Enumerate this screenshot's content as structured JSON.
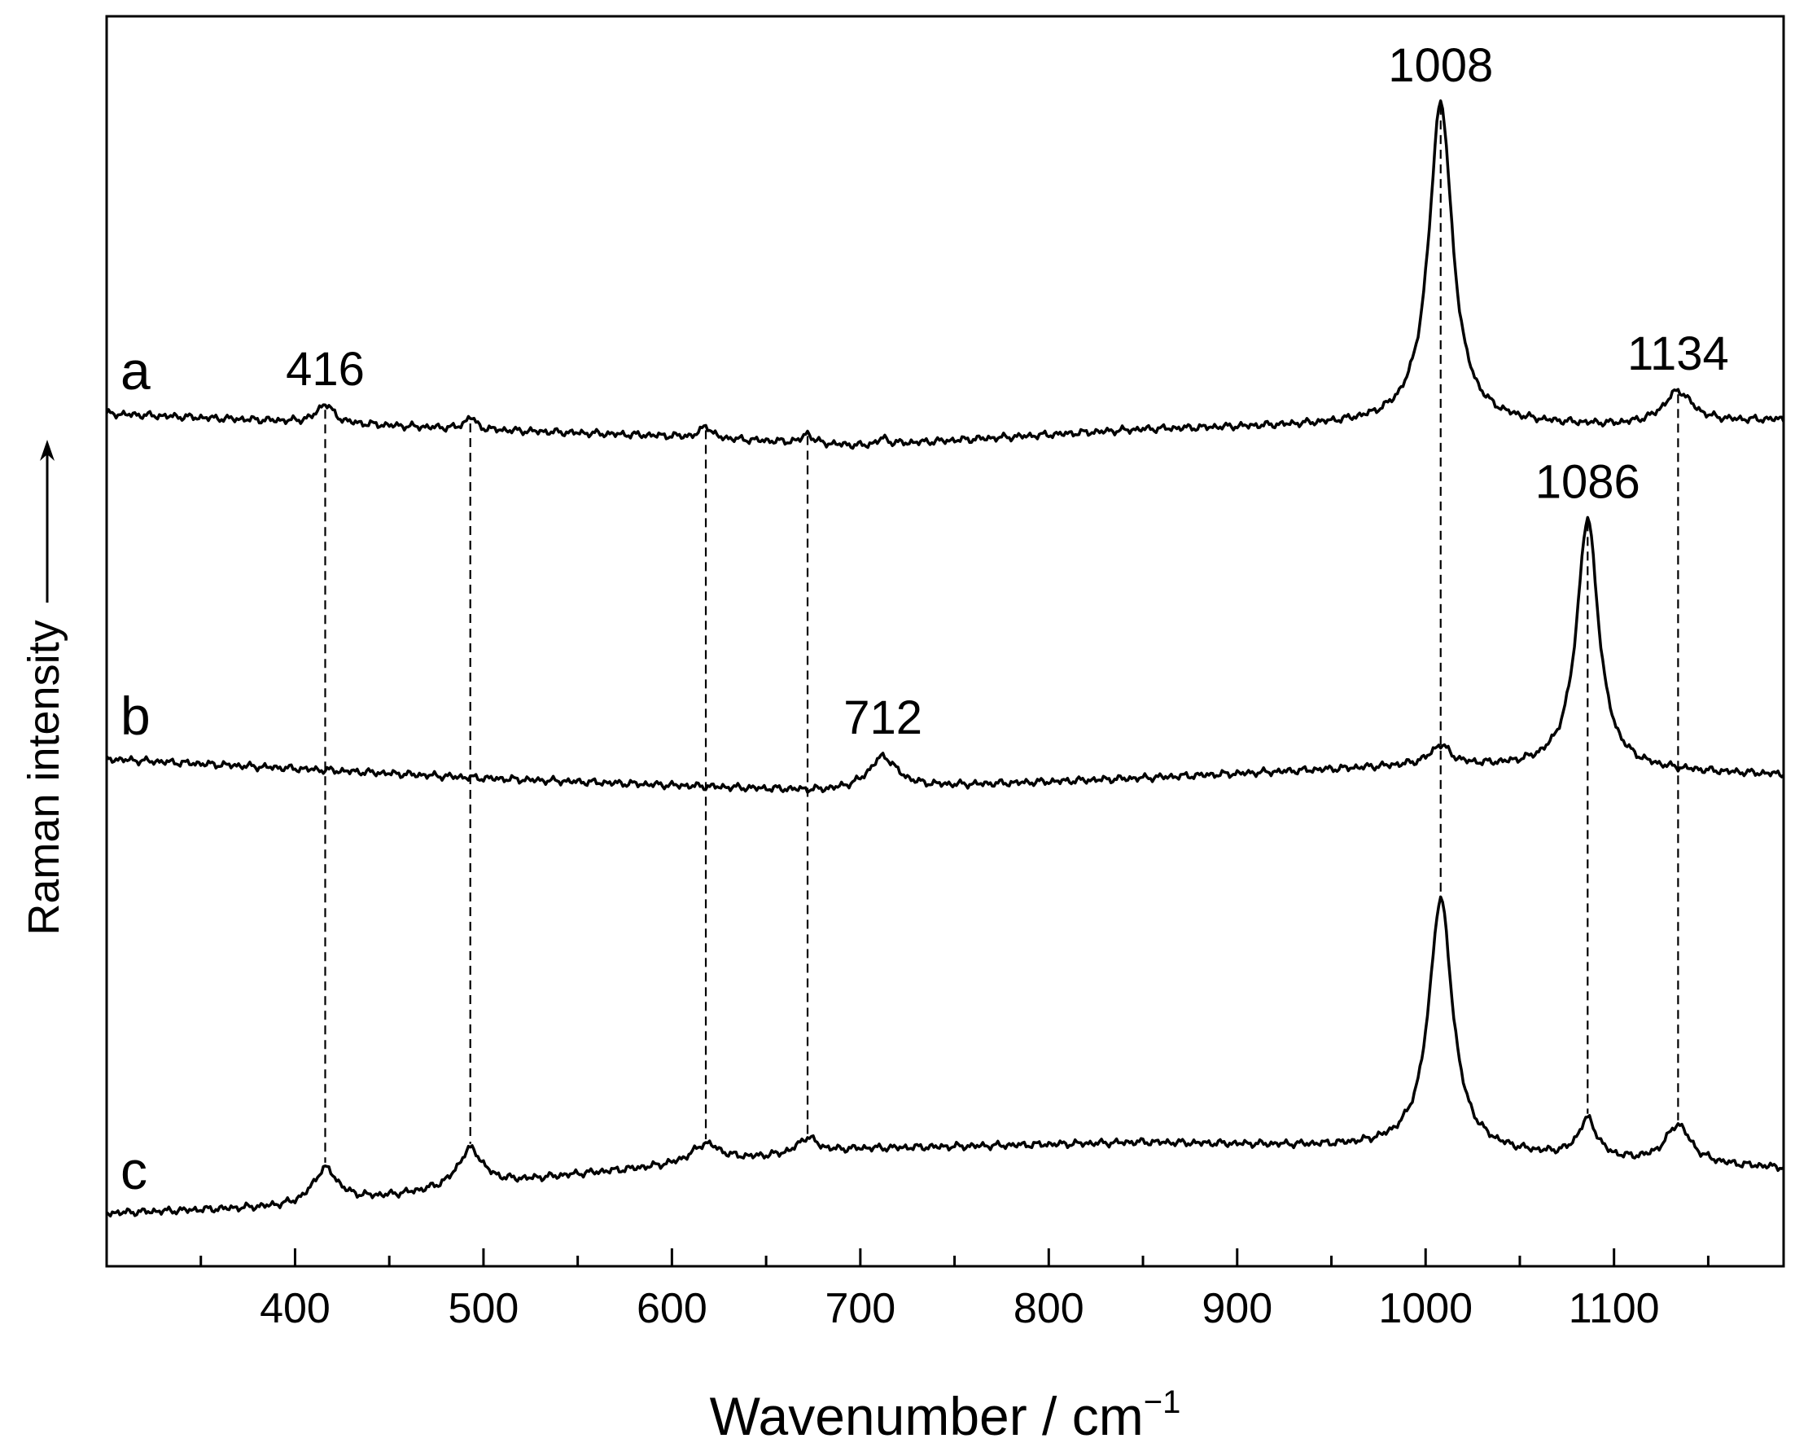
{
  "chart_data": {
    "type": "line",
    "xlabel": "Wavenumber / cm",
    "xlabel_superscript": "−1",
    "ylabel": "Raman intensity",
    "ylabel_arrow": "up",
    "xlim": [
      300,
      1190
    ],
    "x_ticks": [
      400,
      500,
      600,
      700,
      800,
      900,
      1000,
      1100
    ],
    "x_minor_step": 50,
    "y_tick_labels": "none",
    "grid": false,
    "legend": "none",
    "series": [
      {
        "name": "a",
        "baseline": [
          [
            300,
            0
          ],
          [
            420,
            -0.03
          ],
          [
            500,
            -0.05
          ],
          [
            600,
            -0.07
          ],
          [
            700,
            -0.1
          ],
          [
            850,
            -0.05
          ],
          [
            1000,
            -0.03
          ],
          [
            1100,
            -0.04
          ],
          [
            1190,
            -0.02
          ]
        ],
        "peaks": [
          {
            "x": 416,
            "height": 0.06,
            "width": 5
          },
          {
            "x": 493,
            "height": 0.04,
            "width": 3
          },
          {
            "x": 618,
            "height": 0.04,
            "width": 3
          },
          {
            "x": 672,
            "height": 0.03,
            "width": 3
          },
          {
            "x": 712,
            "height": 0.02,
            "width": 3
          },
          {
            "x": 1008,
            "height": 1.0,
            "width": 7.5
          },
          {
            "x": 1134,
            "height": 0.1,
            "width": 9
          }
        ]
      },
      {
        "name": "b",
        "baseline": [
          [
            300,
            0
          ],
          [
            500,
            -0.06
          ],
          [
            680,
            -0.1
          ],
          [
            850,
            -0.06
          ],
          [
            1000,
            -0.02
          ],
          [
            1190,
            -0.05
          ]
        ],
        "peaks": [
          {
            "x": 712,
            "height": 0.1,
            "width": 9
          },
          {
            "x": 1008,
            "height": 0.06,
            "width": 6
          },
          {
            "x": 1086,
            "height": 0.78,
            "width": 7
          }
        ]
      },
      {
        "name": "c",
        "baseline": [
          [
            300,
            0
          ],
          [
            400,
            0.02
          ],
          [
            450,
            0.05
          ],
          [
            550,
            0.12
          ],
          [
            700,
            0.2
          ],
          [
            850,
            0.22
          ],
          [
            1000,
            0.2
          ],
          [
            1050,
            0.18
          ],
          [
            1100,
            0.16
          ],
          [
            1190,
            0.14
          ]
        ],
        "peaks": [
          {
            "x": 416,
            "height": 0.11,
            "width": 8
          },
          {
            "x": 493,
            "height": 0.12,
            "width": 8
          },
          {
            "x": 618,
            "height": 0.06,
            "width": 9
          },
          {
            "x": 672,
            "height": 0.05,
            "width": 6
          },
          {
            "x": 1008,
            "height": 0.78,
            "width": 7.5
          },
          {
            "x": 1086,
            "height": 0.12,
            "width": 6
          },
          {
            "x": 1134,
            "height": 0.12,
            "width": 8
          }
        ]
      }
    ],
    "peak_labels": [
      {
        "series": "a",
        "x": 416,
        "text": "416"
      },
      {
        "series": "a",
        "x": 1008,
        "text": "1008"
      },
      {
        "series": "a",
        "x": 1134,
        "text": "1134"
      },
      {
        "series": "b",
        "x": 712,
        "text": "712"
      },
      {
        "series": "b",
        "x": 1086,
        "text": "1086"
      }
    ],
    "dashed_guides": [
      {
        "x": 416,
        "from": "a",
        "to": "c"
      },
      {
        "x": 493,
        "from": "a",
        "to": "c"
      },
      {
        "x": 618,
        "from": "a",
        "to": "c"
      },
      {
        "x": 672,
        "from": "a",
        "to": "c"
      },
      {
        "x": 1008,
        "from": "a",
        "to": "c"
      },
      {
        "x": 1086,
        "from": "b",
        "to": "c"
      },
      {
        "x": 1134,
        "from": "a",
        "to": "c"
      }
    ]
  }
}
